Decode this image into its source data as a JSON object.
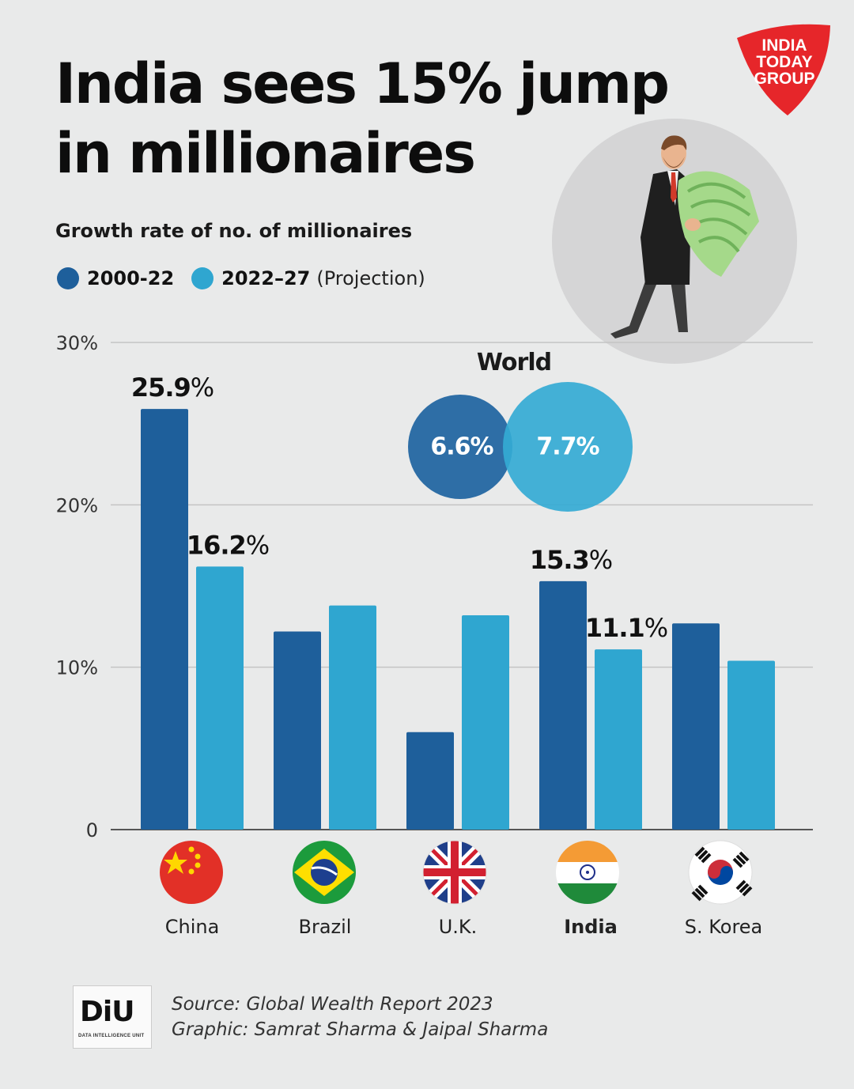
{
  "header": {
    "title": "India sees 15% jump in millionaires",
    "subtitle": "Growth rate of no. of millionaires"
  },
  "legend": {
    "items": [
      {
        "label": "2000-22",
        "note": "",
        "color": "#1e5f9b"
      },
      {
        "label": "2022–27",
        "note": "(Projection)",
        "color": "#2fa6d0"
      }
    ]
  },
  "logo": {
    "lines": [
      "INDIA",
      "TODAY",
      "GROUP"
    ],
    "color": "#e6262a"
  },
  "world": {
    "label": "World",
    "v2000": "6.6%",
    "v2022": "7.7%"
  },
  "chart_data": {
    "type": "bar",
    "categories": [
      "China",
      "Brazil",
      "U.K.",
      "India",
      "S. Korea"
    ],
    "series": [
      {
        "name": "2000-22",
        "values": [
          25.9,
          12.2,
          6.0,
          15.3,
          12.7
        ],
        "color": "#1e5f9b"
      },
      {
        "name": "2022–27 (Projection)",
        "values": [
          16.2,
          13.8,
          13.2,
          11.1,
          10.4
        ],
        "color": "#2fa6d0"
      }
    ],
    "yticks": [
      "0",
      "10%",
      "20%",
      "30%"
    ],
    "ylim": [
      0,
      30
    ],
    "grid": true,
    "highlight_category": "India",
    "data_labels": [
      {
        "category": "China",
        "series": 0,
        "value": "25.9",
        "unit": "%"
      },
      {
        "category": "China",
        "series": 1,
        "value": "16.2",
        "unit": "%"
      },
      {
        "category": "India",
        "series": 0,
        "value": "15.3",
        "unit": "%"
      },
      {
        "category": "India",
        "series": 1,
        "value": "11.1",
        "unit": "%"
      }
    ],
    "flags": [
      "china-flag-icon",
      "brazil-flag-icon",
      "uk-flag-icon",
      "india-flag-icon",
      "south-korea-flag-icon"
    ]
  },
  "footer": {
    "logo_text": "DiU",
    "logo_sub": "DATA INTELLIGENCE UNIT",
    "source": "Source: Global Wealth Report 2023",
    "credit": "Graphic: Samrat Sharma & Jaipal Sharma"
  }
}
